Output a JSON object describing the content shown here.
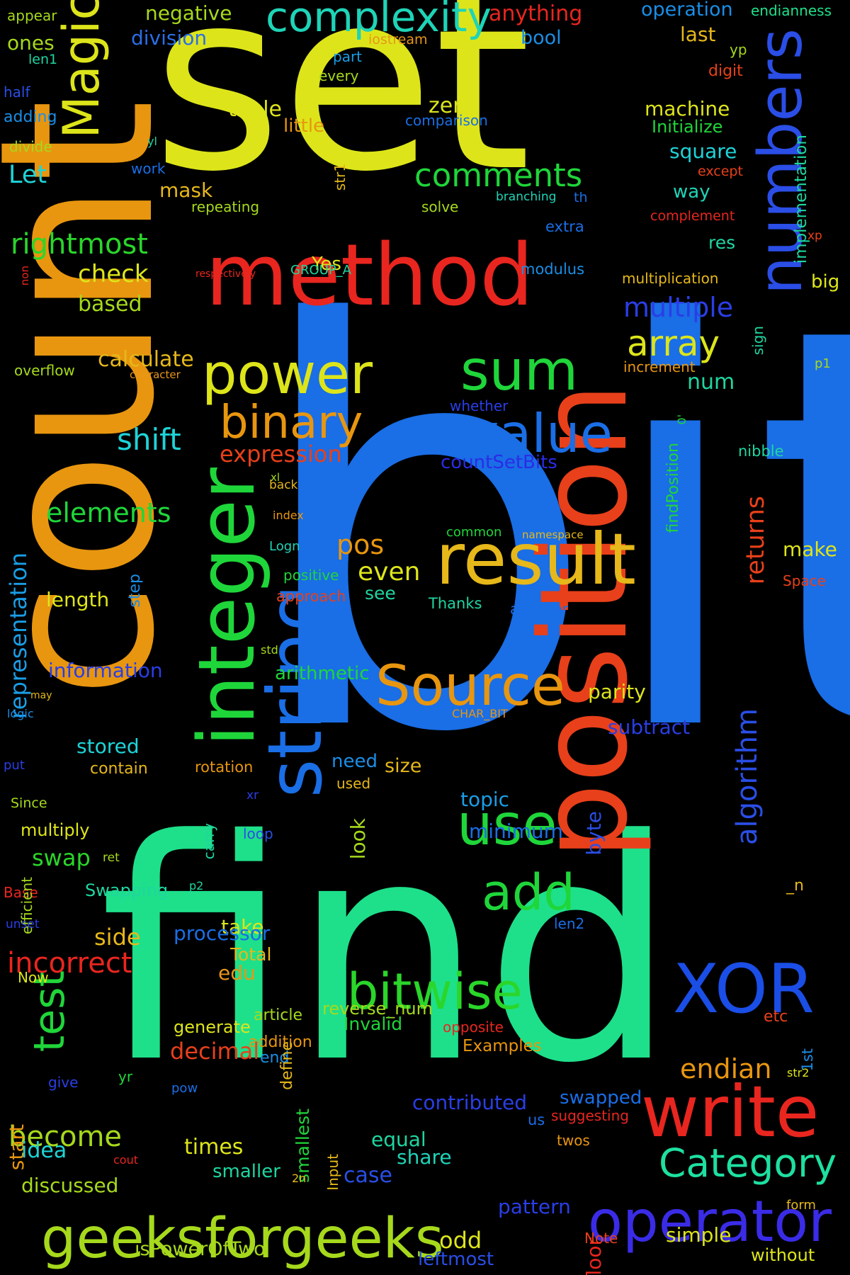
{
  "palette": {
    "background": "#000000",
    "yellow": "#dde51a",
    "blue": "#1a6ee6",
    "orange": "#e8960f",
    "red": "#e8261f",
    "green": "#1fd63a",
    "teal": "#1ee08a",
    "lime": "#a6d91c",
    "cyan": "#1ed4d8",
    "indigo": "#3a2ce6",
    "gold": "#e6b81a"
  },
  "words": [
    {
      "text": "set",
      "color": "#dde51a"
    },
    {
      "text": "bit",
      "color": "#1a6ee6"
    },
    {
      "text": "count",
      "color": "#e8960f"
    },
    {
      "text": "find",
      "color": "#1ee08a"
    },
    {
      "text": "position",
      "color": "#e8401a"
    },
    {
      "text": "method",
      "color": "#e8261f"
    },
    {
      "text": "numbers",
      "color": "#2a4ee6"
    },
    {
      "text": "integer",
      "color": "#1fd63a"
    },
    {
      "text": "string",
      "color": "#1a6ee6"
    },
    {
      "text": "result",
      "color": "#e6b81a"
    },
    {
      "text": "power",
      "color": "#dde51a"
    },
    {
      "text": "binary",
      "color": "#e8960f"
    },
    {
      "text": "sum",
      "color": "#1fd63a"
    },
    {
      "text": "value",
      "color": "#1a6ee6"
    },
    {
      "text": "Source",
      "color": "#e8960f"
    },
    {
      "text": "Magic",
      "color": "#dde51a"
    },
    {
      "text": "use",
      "color": "#1fd63a"
    },
    {
      "text": "add",
      "color": "#1fd63a"
    },
    {
      "text": "XOR",
      "color": "#1a4ee6"
    },
    {
      "text": "write",
      "color": "#e8261f"
    },
    {
      "text": "bitwise",
      "color": "#2ad62a"
    },
    {
      "text": "test",
      "color": "#1fd63a"
    },
    {
      "text": "geeksforgeeks",
      "color": "#a6d91c"
    },
    {
      "text": "operator",
      "color": "#3a2ce6"
    },
    {
      "text": "Category",
      "color": "#1ee0a0"
    },
    {
      "text": "complexity",
      "color": "#1ed4b8"
    },
    {
      "text": "comments",
      "color": "#1fd63a"
    },
    {
      "text": "rightmost",
      "color": "#2ad62a"
    },
    {
      "text": "array",
      "color": "#dde51a"
    },
    {
      "text": "multiple",
      "color": "#2a3ee6"
    },
    {
      "text": "shift",
      "color": "#1ed4d8"
    },
    {
      "text": "elements",
      "color": "#1fd63a"
    },
    {
      "text": "representation",
      "color": "#1a9ee6"
    },
    {
      "text": "algorithm",
      "color": "#2a4ee6"
    },
    {
      "text": "returns",
      "color": "#e8401a"
    },
    {
      "text": "incorrect",
      "color": "#e8261f"
    },
    {
      "text": "endian",
      "color": "#e8960f"
    },
    {
      "text": "become",
      "color": "#a6d91c"
    },
    {
      "text": "expression",
      "color": "#e8401a"
    },
    {
      "text": "countSetBits",
      "color": "#2a2ce6"
    },
    {
      "text": "pos",
      "color": "#e8960f"
    },
    {
      "text": "even",
      "color": "#dde51a"
    },
    {
      "text": "check",
      "color": "#dde51a"
    },
    {
      "text": "based",
      "color": "#a6d91c"
    },
    {
      "text": "calculate",
      "color": "#e6b81a"
    },
    {
      "text": "anything",
      "color": "#e8261f"
    },
    {
      "text": "negative",
      "color": "#a6d91c"
    },
    {
      "text": "division",
      "color": "#2a6ee6"
    },
    {
      "text": "ones",
      "color": "#a6d91c"
    },
    {
      "text": "operation",
      "color": "#1a8ee6"
    },
    {
      "text": "endianness",
      "color": "#1ee08a"
    },
    {
      "text": "bool",
      "color": "#1a8ee6"
    },
    {
      "text": "last",
      "color": "#e6b81a"
    },
    {
      "text": "yp",
      "color": "#a6d91c"
    },
    {
      "text": "digit",
      "color": "#e8401a"
    },
    {
      "text": "implementation",
      "color": "#1fd6a0"
    },
    {
      "text": "appear",
      "color": "#a6d91c"
    },
    {
      "text": "iostream",
      "color": "#e8961a"
    },
    {
      "text": "len1",
      "color": "#1fd6a0"
    },
    {
      "text": "part",
      "color": "#1a9ee6"
    },
    {
      "text": "every",
      "color": "#a6d91c"
    },
    {
      "text": "half",
      "color": "#2a4ee6"
    },
    {
      "text": "adding",
      "color": "#1a8ee6"
    },
    {
      "text": "table",
      "color": "#dde51a"
    },
    {
      "text": "little",
      "color": "#e8960f"
    },
    {
      "text": "zero",
      "color": "#dde51a"
    },
    {
      "text": "comparison",
      "color": "#1a6ee6"
    },
    {
      "text": "machine",
      "color": "#dde51a"
    },
    {
      "text": "Initialize",
      "color": "#1fd63a"
    },
    {
      "text": "divide",
      "color": "#a6d91c"
    },
    {
      "text": "yl",
      "color": "#1fd6a0"
    },
    {
      "text": "work",
      "color": "#1a6ee6"
    },
    {
      "text": "square",
      "color": "#1ed4d8"
    },
    {
      "text": "except",
      "color": "#e8401a"
    },
    {
      "text": "Let",
      "color": "#1ed4d8"
    },
    {
      "text": "str1",
      "color": "#e6b81a"
    },
    {
      "text": "mask",
      "color": "#e6b81a"
    },
    {
      "text": "branching",
      "color": "#1ed4b8"
    },
    {
      "text": "th",
      "color": "#1a6ee6"
    },
    {
      "text": "way",
      "color": "#1ed4b8"
    },
    {
      "text": "repeating",
      "color": "#a6d91c"
    },
    {
      "text": "solve",
      "color": "#a6d91c"
    },
    {
      "text": "complement",
      "color": "#e8261f"
    },
    {
      "text": "extra",
      "color": "#1a6ee6"
    },
    {
      "text": "xp",
      "color": "#e8401a"
    },
    {
      "text": "res",
      "color": "#1fd6a0"
    },
    {
      "text": "Yes",
      "color": "#dde51a"
    },
    {
      "text": "non",
      "color": "#e8261f"
    },
    {
      "text": "respectively",
      "color": "#e8261f"
    },
    {
      "text": "GROUP_A",
      "color": "#1fd6a0"
    },
    {
      "text": "modulus",
      "color": "#1a8ee6"
    },
    {
      "text": "multiplication",
      "color": "#e6b81a"
    },
    {
      "text": "big",
      "color": "#dde51a"
    },
    {
      "text": "overflow",
      "color": "#a6d91c"
    },
    {
      "text": "character",
      "color": "#e8961a"
    },
    {
      "text": "increment",
      "color": "#e8960f"
    },
    {
      "text": "sign",
      "color": "#1fd6a0"
    },
    {
      "text": "p1",
      "color": "#a6d91c"
    },
    {
      "text": "num",
      "color": "#1fd6a0"
    },
    {
      "text": "whether",
      "color": "#2a3ee6"
    },
    {
      "text": "0'",
      "color": "#1fd63a"
    },
    {
      "text": "findPosition",
      "color": "#1fd63a"
    },
    {
      "text": "nibble",
      "color": "#1fd6a0"
    },
    {
      "text": "xl",
      "color": "#a6d91c"
    },
    {
      "text": "back",
      "color": "#e6b81a"
    },
    {
      "text": "index",
      "color": "#e8960f"
    },
    {
      "text": "common",
      "color": "#1fd63a"
    },
    {
      "text": "namespace",
      "color": "#e6b81a"
    },
    {
      "text": "Logn",
      "color": "#1ed4b8"
    },
    {
      "text": "make",
      "color": "#dde51a"
    },
    {
      "text": "positive",
      "color": "#1fd63a"
    },
    {
      "text": "see",
      "color": "#1fd6a0"
    },
    {
      "text": "approach",
      "color": "#e8401a"
    },
    {
      "text": "Space",
      "color": "#e8401a"
    },
    {
      "text": "length",
      "color": "#dde51a"
    },
    {
      "text": "step",
      "color": "#1a8ee6"
    },
    {
      "text": "Thanks",
      "color": "#1fd6a0"
    },
    {
      "text": "another",
      "color": "#1a6ee6"
    },
    {
      "text": "std",
      "color": "#a6d91c"
    },
    {
      "text": "information",
      "color": "#2a3ee6"
    },
    {
      "text": "arithmetic",
      "color": "#1fd63a"
    },
    {
      "text": "parity",
      "color": "#dde51a"
    },
    {
      "text": "may",
      "color": "#e6b81a"
    },
    {
      "text": "logic",
      "color": "#1a8ee6"
    },
    {
      "text": "CHAR_BIT",
      "color": "#e8960f"
    },
    {
      "text": "size",
      "color": "#e6b81a"
    },
    {
      "text": "subtract",
      "color": "#2a3ee6"
    },
    {
      "text": "stored",
      "color": "#1ed4d8"
    },
    {
      "text": "contain",
      "color": "#e6b81a"
    },
    {
      "text": "rotation",
      "color": "#e8960f"
    },
    {
      "text": "need",
      "color": "#1a8ee6"
    },
    {
      "text": "used",
      "color": "#e6b81a"
    },
    {
      "text": "put",
      "color": "#2a3ee6"
    },
    {
      "text": "Since",
      "color": "#a6d91c"
    },
    {
      "text": "xr",
      "color": "#2a3ee6"
    },
    {
      "text": "topic",
      "color": "#1a9ee6"
    },
    {
      "text": "look",
      "color": "#a6d91c"
    },
    {
      "text": "multiply",
      "color": "#dde51a"
    },
    {
      "text": "carry",
      "color": "#1fd6a0"
    },
    {
      "text": "loop",
      "color": "#2a4ee6"
    },
    {
      "text": "minimum",
      "color": "#1a6ee6"
    },
    {
      "text": "byte",
      "color": "#2a4ee6"
    },
    {
      "text": "swap",
      "color": "#2ad62a"
    },
    {
      "text": "Base",
      "color": "#e8261f"
    },
    {
      "text": "ret",
      "color": "#a6d91c"
    },
    {
      "text": "_n",
      "color": "#e6b81a"
    },
    {
      "text": "efficient",
      "color": "#a6d91c"
    },
    {
      "text": "Swapping",
      "color": "#1fd6a0"
    },
    {
      "text": "p2",
      "color": "#1fd6a0"
    },
    {
      "text": "unset",
      "color": "#2a3ee6"
    },
    {
      "text": "take",
      "color": "#dde51a"
    },
    {
      "text": "Total",
      "color": "#e6b81a"
    },
    {
      "text": "edu",
      "color": "#e8961a"
    },
    {
      "text": "Now",
      "color": "#dde51a"
    },
    {
      "text": "side",
      "color": "#e6b81a"
    },
    {
      "text": "processor",
      "color": "#1a6ee6"
    },
    {
      "text": "len2",
      "color": "#1a6ee6"
    },
    {
      "text": "reverse_num",
      "color": "#a6d91c"
    },
    {
      "text": "generate",
      "color": "#dde51a"
    },
    {
      "text": "article",
      "color": "#a6d91c"
    },
    {
      "text": "addition",
      "color": "#e8960f"
    },
    {
      "text": "Invalid",
      "color": "#1fd63a"
    },
    {
      "text": "end",
      "color": "#1a8ee6"
    },
    {
      "text": "opposite",
      "color": "#e8261f"
    },
    {
      "text": "etc",
      "color": "#e8401a"
    },
    {
      "text": "define",
      "color": "#e6b81a"
    },
    {
      "text": "1st",
      "color": "#1a8ee6"
    },
    {
      "text": "Examples",
      "color": "#e8960f"
    },
    {
      "text": "str2",
      "color": "#dde51a"
    },
    {
      "text": "decimal",
      "color": "#e8401a"
    },
    {
      "text": "yr",
      "color": "#1fd63a"
    },
    {
      "text": "give",
      "color": "#2a3ee6"
    },
    {
      "text": "pow",
      "color": "#1a6ee6"
    },
    {
      "text": "contributed",
      "color": "#2a3ee6"
    },
    {
      "text": "swapped",
      "color": "#1a6ee6"
    },
    {
      "text": "us",
      "color": "#1a6ee6"
    },
    {
      "text": "twos",
      "color": "#e8960f"
    },
    {
      "text": "smallest",
      "color": "#1fd63a"
    },
    {
      "text": "suggesting",
      "color": "#e8261f"
    },
    {
      "text": "equal",
      "color": "#1fd6a0"
    },
    {
      "text": "share",
      "color": "#1ed4b8"
    },
    {
      "text": "start",
      "color": "#e8960f"
    },
    {
      "text": "idea",
      "color": "#1ed4d8"
    },
    {
      "text": "cout",
      "color": "#e8261f"
    },
    {
      "text": "times",
      "color": "#dde51a"
    },
    {
      "text": "2n",
      "color": "#e6b81a"
    },
    {
      "text": "Input",
      "color": "#e6b81a"
    },
    {
      "text": "case",
      "color": "#2a4ee6"
    },
    {
      "text": "form",
      "color": "#e6b81a"
    },
    {
      "text": "smaller",
      "color": "#1fd6a0"
    },
    {
      "text": "discussed",
      "color": "#a6d91c"
    },
    {
      "text": "pattern",
      "color": "#2a3ee6"
    },
    {
      "text": "odd",
      "color": "#dde51a"
    },
    {
      "text": "floor",
      "color": "#e8261f"
    },
    {
      "text": "Note",
      "color": "#e8401a"
    },
    {
      "text": "simple",
      "color": "#dde51a"
    },
    {
      "text": "without",
      "color": "#dde51a"
    },
    {
      "text": "isPowerOfTwo",
      "color": "#a6d91c"
    },
    {
      "text": "leftmost",
      "color": "#2a4ee6"
    }
  ]
}
